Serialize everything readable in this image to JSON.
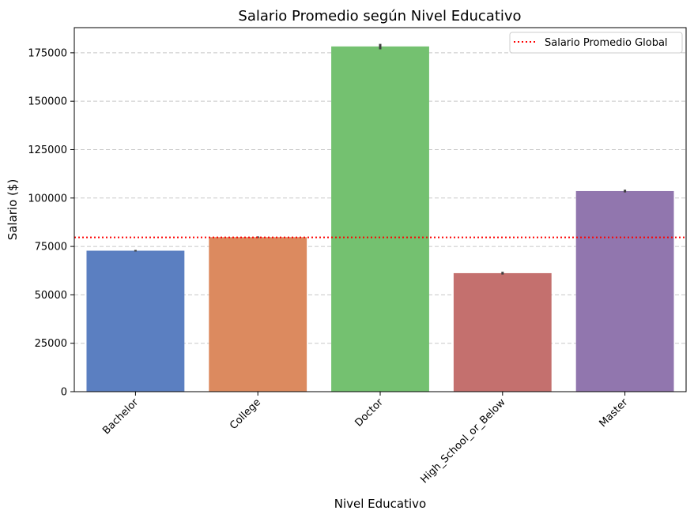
{
  "chart_data": {
    "type": "bar",
    "title": "Salario Promedio según Nivel Educativo",
    "xlabel": "Nivel Educativo",
    "ylabel": "Salario ($)",
    "categories": [
      "Bachelor",
      "College",
      "Doctor",
      "High_School_or_Below",
      "Master"
    ],
    "values": [
      72800,
      79800,
      178300,
      61200,
      103600
    ],
    "error_bars": [
      [
        72400,
        73200
      ],
      [
        79400,
        80200
      ],
      [
        176800,
        179600
      ],
      [
        60500,
        61900
      ],
      [
        102900,
        104300
      ]
    ],
    "colors": [
      "#5b7fc1",
      "#dc8a5f",
      "#74c170",
      "#c4706e",
      "#9176ae"
    ],
    "ylim": [
      0,
      188000
    ],
    "yticks": [
      0,
      25000,
      50000,
      75000,
      100000,
      125000,
      150000,
      175000
    ],
    "reference_line": {
      "value": 79700,
      "label": "Salario Promedio Global",
      "color": "#ff0000",
      "style": "dotted"
    },
    "grid": "y-dashed",
    "legend_position": "top-right",
    "x_tick_rotation": 45
  }
}
